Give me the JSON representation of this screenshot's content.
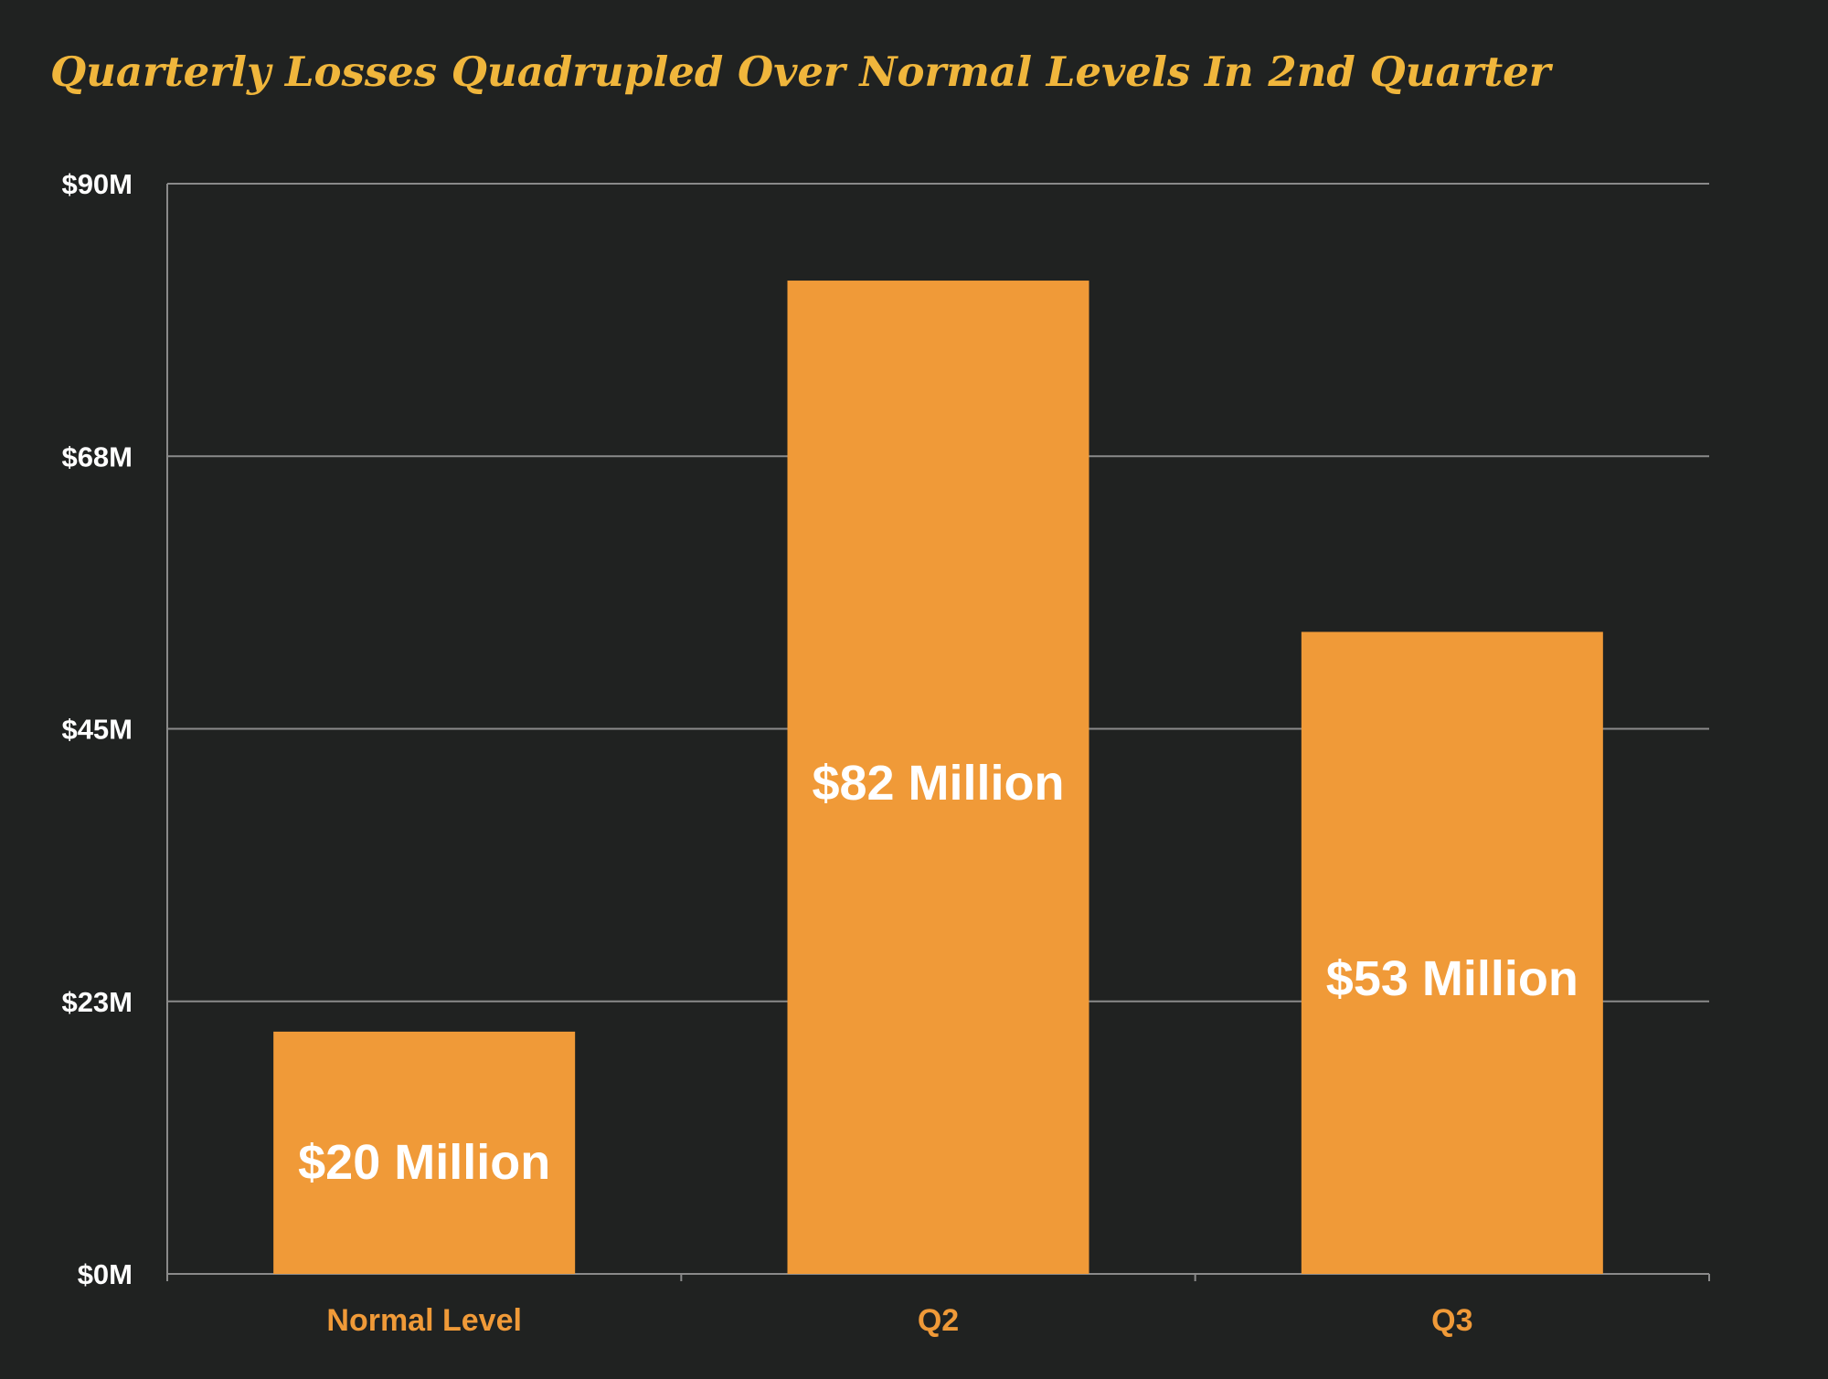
{
  "chart_data": {
    "type": "bar",
    "title": "Quarterly Losses Quadrupled Over Normal Levels In 2nd Quarter",
    "xlabel": "",
    "ylabel": "",
    "categories": [
      "Normal Level",
      "Q2",
      "Q3"
    ],
    "values": [
      20,
      82,
      53
    ],
    "data_labels": [
      "$20 Million",
      "$82 Million",
      "$53 Million"
    ],
    "yticks": [
      0,
      22.5,
      45,
      67.5,
      90
    ],
    "ytick_labels": [
      "$0M",
      "$23M",
      "$45M",
      "$68M",
      "$90M"
    ],
    "ylim": [
      0,
      90
    ],
    "grid": true,
    "legend": "none",
    "colors": {
      "bar": "#f09a38",
      "title": "#f0b63c",
      "category_label": "#f09a38",
      "background": "#202221",
      "grid": "#8a8a8a"
    }
  }
}
